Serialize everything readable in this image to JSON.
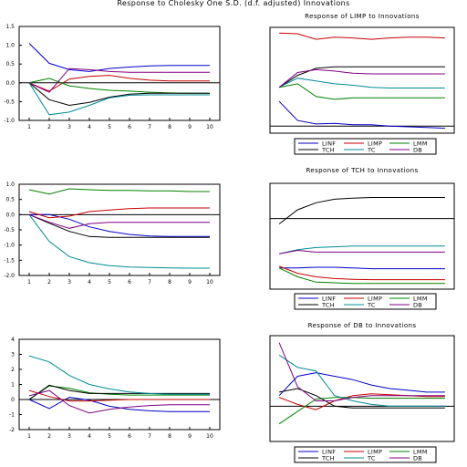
{
  "figure_title": "Response to Cholesky One S.D. (d.f. adjusted) Innovations",
  "legend": {
    "entries": [
      {
        "name": "LINF",
        "color": "#0000c8"
      },
      {
        "name": "LIMP",
        "color": "#c80000"
      },
      {
        "name": "LMM",
        "color": "#008000"
      },
      {
        "name": "TCH",
        "color": "#000000"
      },
      {
        "name": "TC",
        "color": "#008c96"
      },
      {
        "name": "DB",
        "color": "#800080"
      }
    ]
  },
  "chart_data": [
    {
      "type": "line",
      "title": "",
      "x": [
        1,
        2,
        3,
        4,
        5,
        6,
        7,
        8,
        9,
        10
      ],
      "ylim": [
        -1.0,
        1.5
      ],
      "yticks": [
        "1.5",
        "1.0",
        "0.5",
        "0.0",
        "-0.5",
        "-1.0"
      ],
      "xticks": [
        "1",
        "2",
        "3",
        "4",
        "5",
        "6",
        "7",
        "8",
        "9",
        "10"
      ],
      "series": [
        {
          "name": "LINF",
          "color": "#0000c8",
          "values": [
            1.05,
            0.52,
            0.35,
            0.3,
            0.38,
            0.42,
            0.45,
            0.46,
            0.46,
            0.46
          ]
        },
        {
          "name": "LIMP",
          "color": "#c80000",
          "values": [
            0.0,
            -0.22,
            0.1,
            0.17,
            0.2,
            0.12,
            0.07,
            0.05,
            0.05,
            0.05
          ]
        },
        {
          "name": "LMM",
          "color": "#008000",
          "values": [
            0.0,
            0.12,
            -0.08,
            -0.15,
            -0.2,
            -0.22,
            -0.25,
            -0.27,
            -0.28,
            -0.28
          ]
        },
        {
          "name": "TCH",
          "color": "#000000",
          "values": [
            0.0,
            -0.45,
            -0.6,
            -0.52,
            -0.38,
            -0.3,
            -0.28,
            -0.28,
            -0.28,
            -0.28
          ]
        },
        {
          "name": "TC",
          "color": "#008c96",
          "values": [
            0.0,
            -0.85,
            -0.78,
            -0.6,
            -0.4,
            -0.33,
            -0.32,
            -0.32,
            -0.32,
            -0.32
          ]
        },
        {
          "name": "DB",
          "color": "#800080",
          "values": [
            0.0,
            -0.25,
            0.38,
            0.35,
            0.3,
            0.28,
            0.28,
            0.28,
            0.28,
            0.28
          ]
        }
      ]
    },
    {
      "type": "line",
      "title": "Response of LIMP to Innovations",
      "x": [
        1,
        2,
        3,
        4,
        5,
        6,
        7,
        8,
        9,
        10
      ],
      "ylim": [
        -0.1,
        1.4
      ],
      "yticks": [],
      "xticks": [],
      "series": [
        {
          "name": "LINF",
          "color": "#0000c8",
          "values": [
            0.35,
            0.08,
            0.03,
            0.04,
            0.02,
            0.02,
            0.0,
            -0.01,
            -0.02,
            -0.03
          ]
        },
        {
          "name": "LIMP",
          "color": "#c80000",
          "values": [
            1.32,
            1.31,
            1.23,
            1.26,
            1.25,
            1.23,
            1.25,
            1.26,
            1.26,
            1.25
          ]
        },
        {
          "name": "LMM",
          "color": "#008000",
          "values": [
            0.55,
            0.6,
            0.42,
            0.38,
            0.4,
            0.4,
            0.4,
            0.4,
            0.4,
            0.4
          ]
        },
        {
          "name": "TCH",
          "color": "#000000",
          "values": [
            0.55,
            0.72,
            0.82,
            0.84,
            0.84,
            0.84,
            0.84,
            0.84,
            0.84,
            0.84
          ]
        },
        {
          "name": "TC",
          "color": "#008c96",
          "values": [
            0.55,
            0.68,
            0.64,
            0.6,
            0.58,
            0.55,
            0.54,
            0.54,
            0.54,
            0.54
          ]
        },
        {
          "name": "DB",
          "color": "#800080",
          "values": [
            0.55,
            0.76,
            0.8,
            0.78,
            0.75,
            0.74,
            0.74,
            0.74,
            0.74,
            0.74
          ]
        }
      ]
    },
    {
      "type": "line",
      "title": "",
      "x": [
        1,
        2,
        3,
        4,
        5,
        6,
        7,
        8,
        9,
        10
      ],
      "ylim": [
        -2.0,
        1.0
      ],
      "yticks": [
        "1.0",
        "0.5",
        "0.0",
        "-0.5",
        "-1.0",
        "-1.5",
        "-2.0"
      ],
      "xticks": [
        "1",
        "2",
        "3",
        "4",
        "5",
        "6",
        "7",
        "8",
        "9",
        "10"
      ],
      "series": [
        {
          "name": "LINF",
          "color": "#0000c8",
          "values": [
            0.0,
            0.0,
            -0.15,
            -0.4,
            -0.55,
            -0.65,
            -0.7,
            -0.72,
            -0.72,
            -0.72
          ]
        },
        {
          "name": "LIMP",
          "color": "#c80000",
          "values": [
            0.1,
            -0.1,
            -0.05,
            0.1,
            0.15,
            0.2,
            0.22,
            0.22,
            0.22,
            0.22
          ]
        },
        {
          "name": "LMM",
          "color": "#008000",
          "values": [
            0.82,
            0.68,
            0.85,
            0.82,
            0.8,
            0.8,
            0.78,
            0.78,
            0.76,
            0.76
          ]
        },
        {
          "name": "TCH",
          "color": "#000000",
          "values": [
            0.0,
            -0.28,
            -0.55,
            -0.72,
            -0.75,
            -0.75,
            -0.75,
            -0.75,
            -0.75,
            -0.75
          ]
        },
        {
          "name": "TC",
          "color": "#008c96",
          "values": [
            0.0,
            -0.88,
            -1.38,
            -1.58,
            -1.68,
            -1.72,
            -1.74,
            -1.75,
            -1.76,
            -1.76
          ]
        },
        {
          "name": "DB",
          "color": "#800080",
          "values": [
            0.0,
            -0.25,
            -0.45,
            -0.3,
            -0.25,
            -0.25,
            -0.25,
            -0.25,
            -0.25,
            -0.25
          ]
        }
      ]
    },
    {
      "type": "line",
      "title": "Response of TCH to Innovations",
      "x": [
        1,
        2,
        3,
        4,
        5,
        6,
        7,
        8,
        9,
        10
      ],
      "ylim": [
        -2.0,
        1.0
      ],
      "yticks": [],
      "xticks": [],
      "series": [
        {
          "name": "LINF",
          "color": "#0000c8",
          "values": [
            -1.4,
            -1.4,
            -1.38,
            -1.38,
            -1.4,
            -1.42,
            -1.42,
            -1.42,
            -1.42,
            -1.42
          ]
        },
        {
          "name": "LIMP",
          "color": "#c80000",
          "values": [
            -1.35,
            -1.55,
            -1.65,
            -1.7,
            -1.72,
            -1.73,
            -1.73,
            -1.73,
            -1.73,
            -1.73
          ]
        },
        {
          "name": "LMM",
          "color": "#008000",
          "values": [
            -1.4,
            -1.65,
            -1.8,
            -1.82,
            -1.84,
            -1.84,
            -1.84,
            -1.84,
            -1.84,
            -1.84
          ]
        },
        {
          "name": "TCH",
          "color": "#000000",
          "values": [
            -0.15,
            0.25,
            0.45,
            0.55,
            0.58,
            0.6,
            0.6,
            0.6,
            0.6,
            0.6
          ]
        },
        {
          "name": "TC",
          "color": "#008c96",
          "values": [
            -1.0,
            -0.88,
            -0.82,
            -0.8,
            -0.78,
            -0.78,
            -0.78,
            -0.78,
            -0.78,
            -0.78
          ]
        },
        {
          "name": "DB",
          "color": "#800080",
          "values": [
            -1.0,
            -0.9,
            -0.95,
            -0.95,
            -0.95,
            -0.95,
            -0.95,
            -0.95,
            -0.95,
            -0.95
          ]
        }
      ]
    },
    {
      "type": "line",
      "title": "",
      "x": [
        1,
        2,
        3,
        4,
        5,
        6,
        7,
        8,
        9,
        10
      ],
      "ylim": [
        -2,
        4
      ],
      "yticks": [
        "4",
        "3",
        "2",
        "1",
        "0",
        "-1",
        "-2"
      ],
      "xticks": [
        "1",
        "2",
        "3",
        "4",
        "5",
        "6",
        "7",
        "8",
        "9",
        "10"
      ],
      "series": [
        {
          "name": "LINF",
          "color": "#0000c8",
          "values": [
            0.0,
            -0.6,
            0.15,
            -0.05,
            -0.45,
            -0.65,
            -0.75,
            -0.8,
            -0.8,
            -0.8
          ]
        },
        {
          "name": "LIMP",
          "color": "#c80000",
          "values": [
            0.6,
            0.2,
            -0.1,
            -0.1,
            -0.05,
            0.0,
            0.0,
            0.0,
            0.0,
            0.0
          ]
        },
        {
          "name": "LMM",
          "color": "#008000",
          "values": [
            0.0,
            0.9,
            0.75,
            0.45,
            0.35,
            0.3,
            0.3,
            0.3,
            0.3,
            0.3
          ]
        },
        {
          "name": "TCH",
          "color": "#000000",
          "values": [
            0.0,
            0.95,
            0.6,
            0.4,
            0.4,
            0.4,
            0.4,
            0.4,
            0.4,
            0.4
          ]
        },
        {
          "name": "TC",
          "color": "#008c96",
          "values": [
            2.9,
            2.5,
            1.6,
            1.0,
            0.7,
            0.5,
            0.4,
            0.35,
            0.35,
            0.35
          ]
        },
        {
          "name": "DB",
          "color": "#800080",
          "values": [
            0.25,
            0.6,
            -0.4,
            -0.9,
            -0.65,
            -0.5,
            -0.4,
            -0.35,
            -0.35,
            -0.35
          ]
        }
      ]
    },
    {
      "type": "line",
      "title": "Response of DB to Innovations",
      "x": [
        1,
        2,
        3,
        4,
        5,
        6,
        7,
        8,
        9,
        10
      ],
      "ylim": [
        -2,
        4
      ],
      "yticks": [],
      "xticks": [],
      "series": [
        {
          "name": "LINF",
          "color": "#0000c8",
          "values": [
            0.6,
            1.7,
            1.9,
            1.7,
            1.5,
            1.2,
            1.0,
            0.9,
            0.8,
            0.8
          ]
        },
        {
          "name": "LIMP",
          "color": "#c80000",
          "values": [
            0.5,
            0.1,
            -0.2,
            0.3,
            0.6,
            0.7,
            0.65,
            0.6,
            0.55,
            0.55
          ]
        },
        {
          "name": "LMM",
          "color": "#008000",
          "values": [
            -1.0,
            -0.3,
            0.4,
            0.5,
            0.5,
            0.45,
            0.45,
            0.45,
            0.45,
            0.45
          ]
        },
        {
          "name": "TCH",
          "color": "#000000",
          "values": [
            0.8,
            1.0,
            0.6,
            0.0,
            -0.1,
            -0.1,
            -0.1,
            -0.1,
            -0.1,
            -0.1
          ]
        },
        {
          "name": "TC",
          "color": "#008c96",
          "values": [
            2.9,
            2.2,
            2.0,
            0.6,
            0.3,
            0.1,
            0.0,
            0.0,
            0.0,
            0.0
          ]
        },
        {
          "name": "DB",
          "color": "#800080",
          "values": [
            3.6,
            1.1,
            0.3,
            0.3,
            0.5,
            0.6,
            0.6,
            0.6,
            0.6,
            0.6
          ]
        }
      ]
    }
  ]
}
